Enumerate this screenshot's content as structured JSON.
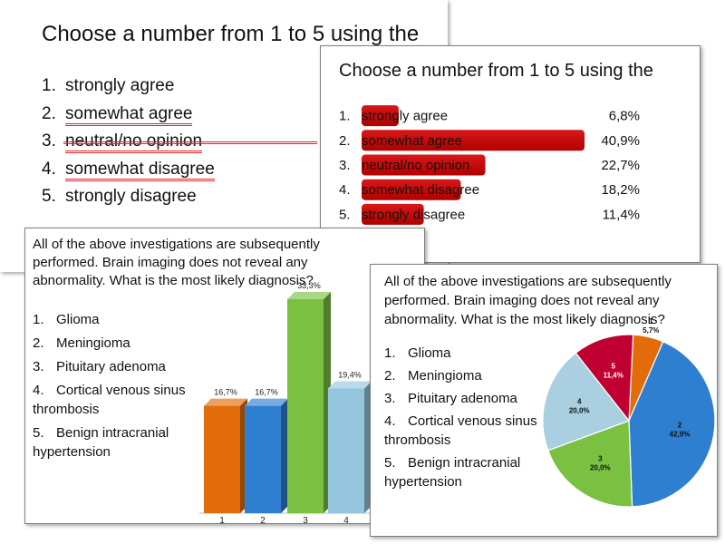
{
  "slide1": {
    "title": "Choose a number from 1 to 5 using the",
    "items": [
      {
        "num": "1.",
        "label": "strongly agree"
      },
      {
        "num": "2.",
        "label": "somewhat agree"
      },
      {
        "num": "3.",
        "label": "neutral/no opinion"
      },
      {
        "num": "4.",
        "label": "somewhat disagree"
      },
      {
        "num": "5.",
        "label": "strongly disagree"
      }
    ]
  },
  "slide3": {
    "question": "All of the above investigations are subsequently performed. Brain imaging does not reveal any abnormality. What is the most likely diagnosis?",
    "options": [
      {
        "num": "1.",
        "label": "Glioma"
      },
      {
        "num": "2.",
        "label": "Meningioma"
      },
      {
        "num": "3.",
        "label": "Pituitary adenoma"
      },
      {
        "num": "4.",
        "label": "Cortical venous sinus thrombosis"
      },
      {
        "num": "5.",
        "label": "Benign intracranial hypertension"
      }
    ]
  },
  "slide4": {
    "question": "All of the above investigations are subsequently performed. Brain imaging does not reveal any abnormality. What is the most likely diagnosis?",
    "options": [
      {
        "num": "1.",
        "label": "Glioma"
      },
      {
        "num": "2.",
        "label": "Meningioma"
      },
      {
        "num": "3.",
        "label": "Pituitary adenoma"
      },
      {
        "num": "4.",
        "label": "Cortical venous sinus thrombosis"
      },
      {
        "num": "5.",
        "label": "Benign intracranial hypertension"
      }
    ]
  },
  "chart_data": [
    {
      "type": "bar",
      "orientation": "horizontal",
      "title": "Choose a number from 1 to 5 using the",
      "categories": [
        "strongly agree",
        "somewhat agree",
        "neutral/no opinion",
        "somewhat disagree",
        "strongly disagree"
      ],
      "numbers": [
        "1.",
        "2.",
        "3.",
        "4.",
        "5."
      ],
      "values": [
        6.8,
        40.9,
        22.7,
        18.2,
        11.4
      ],
      "value_labels": [
        "6,8%",
        "40,9%",
        "22,7%",
        "18,2%",
        "11,4%"
      ],
      "color": "#c00000",
      "xlim": [
        0,
        40.9
      ]
    },
    {
      "type": "bar",
      "categories": [
        "1",
        "2",
        "3",
        "4"
      ],
      "values": [
        16.7,
        16.7,
        33.3,
        19.4
      ],
      "value_labels": [
        "16,7%",
        "16,7%",
        "33,3%",
        "19,4%"
      ],
      "colors": [
        "#e36c0a",
        "#2f7fd0",
        "#7ac142",
        "#93c6dd"
      ],
      "ylim": [
        0,
        33.3
      ]
    },
    {
      "type": "pie",
      "labels": [
        "1",
        "2",
        "3",
        "4",
        "5"
      ],
      "values": [
        5.7,
        42.9,
        20.0,
        20.0,
        11.4
      ],
      "value_labels": [
        "5,7%",
        "42,9%",
        "20,0%",
        "20,0%",
        "11,4%"
      ],
      "colors": [
        "#e36c0a",
        "#2f7fd0",
        "#7ac142",
        "#a9cfe0",
        "#c00030"
      ]
    }
  ]
}
